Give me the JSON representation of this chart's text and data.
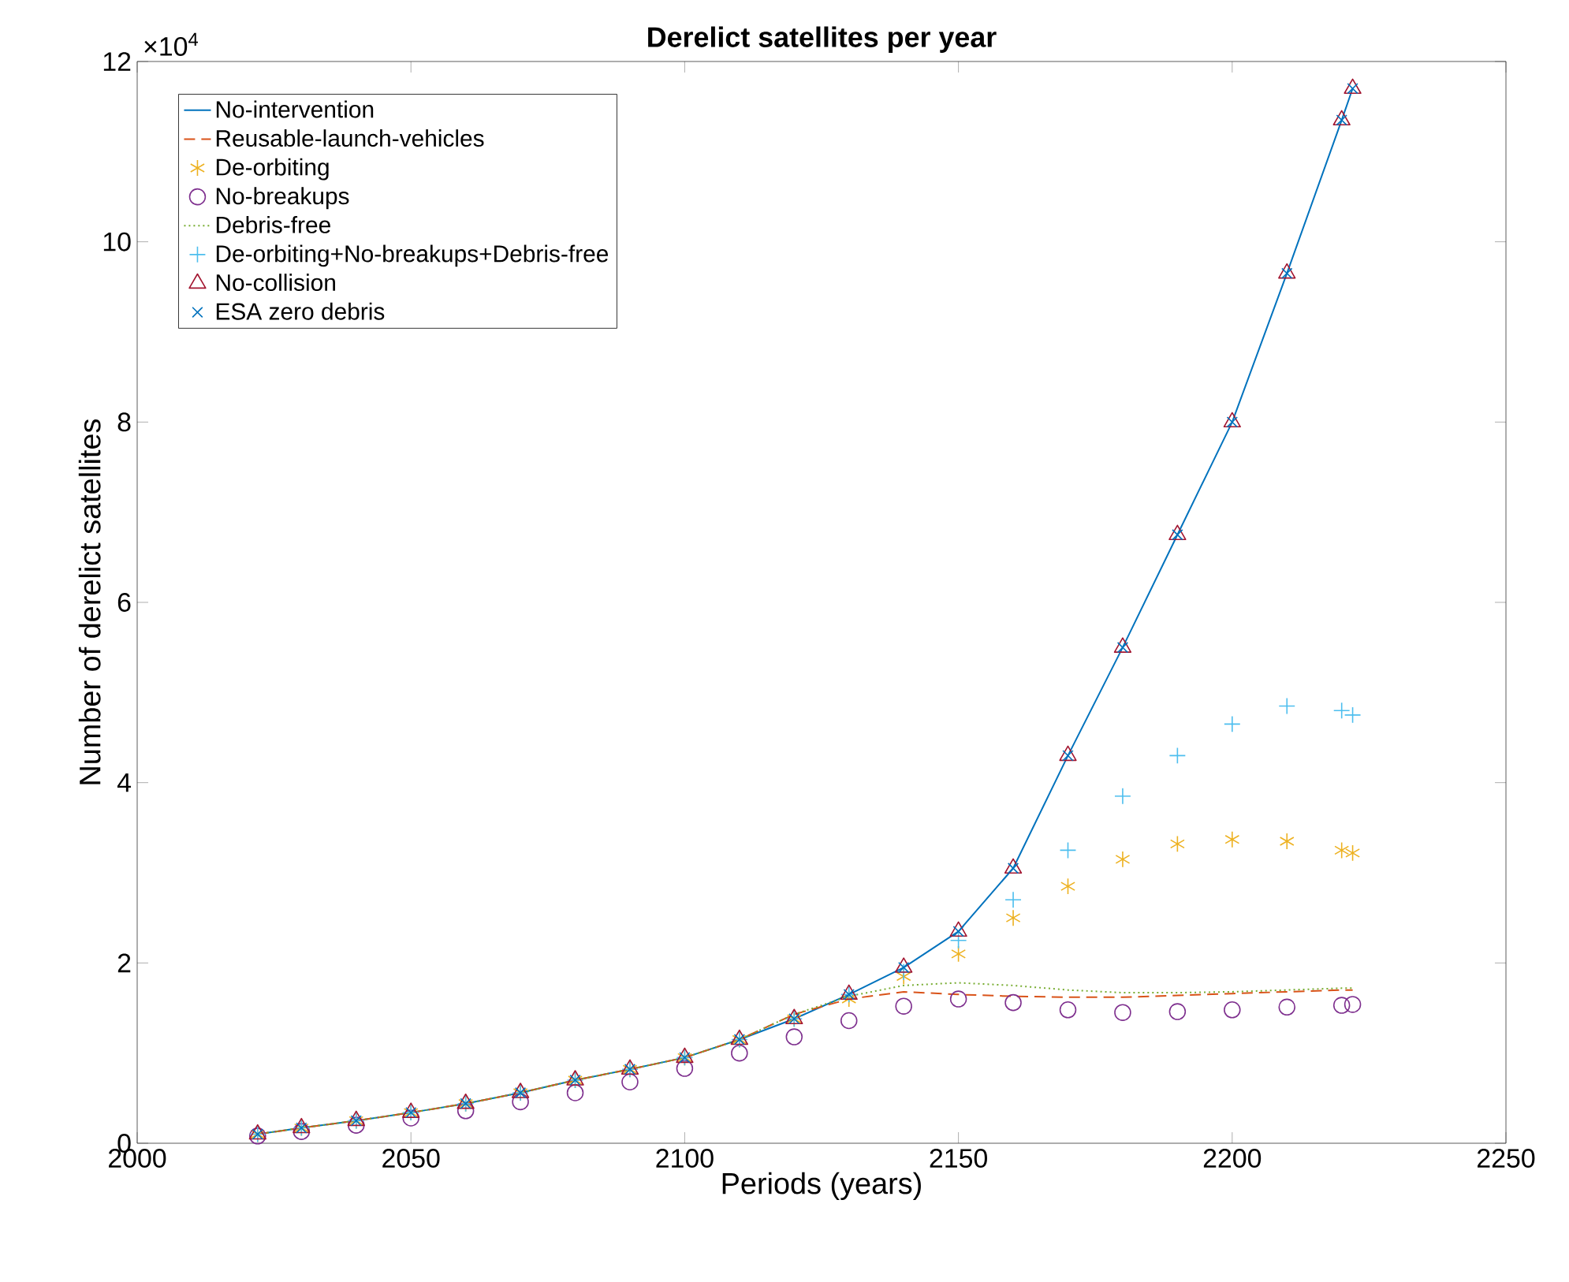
{
  "chart_data": {
    "type": "line",
    "title": "Derelict satellites per year",
    "xlabel": "Periods (years)",
    "ylabel": "Number of derelict satellites",
    "x": [
      2022,
      2030,
      2040,
      2050,
      2060,
      2070,
      2080,
      2090,
      2100,
      2110,
      2120,
      2130,
      2140,
      2150,
      2160,
      2170,
      2180,
      2190,
      2200,
      2210,
      2220,
      2222
    ],
    "xlim": [
      2000,
      2250
    ],
    "xticks": [
      2000,
      2050,
      2100,
      2150,
      2200,
      2250
    ],
    "ylim": [
      0,
      12
    ],
    "yticks": [
      0,
      2,
      4,
      6,
      8,
      10,
      12
    ],
    "annotations": [
      "×10$^{4}$"
    ],
    "legend": "top left",
    "grid": false,
    "series": [
      {
        "name": "No-intervention",
        "color": "#0072bd",
        "line_style": "solid",
        "values": [
          0.1,
          0.17,
          0.25,
          0.34,
          0.44,
          0.56,
          0.7,
          0.82,
          0.95,
          1.15,
          1.38,
          1.65,
          1.95,
          2.35,
          3.05,
          4.3,
          5.5,
          6.75,
          8.0,
          9.65,
          11.35,
          11.7
        ]
      },
      {
        "name": "Reusable-launch-vehicles",
        "color": "#d95319",
        "line_style": "dashed",
        "values": [
          0.1,
          0.17,
          0.25,
          0.34,
          0.44,
          0.56,
          0.7,
          0.82,
          0.95,
          1.15,
          1.43,
          1.6,
          1.68,
          1.65,
          1.63,
          1.62,
          1.62,
          1.64,
          1.66,
          1.68,
          1.7,
          1.7
        ]
      },
      {
        "name": "De-orbiting",
        "color": "#edb120",
        "type": "scatter",
        "values": [
          0.1,
          0.17,
          0.25,
          0.34,
          0.44,
          0.56,
          0.7,
          0.82,
          0.95,
          1.15,
          1.38,
          1.6,
          1.85,
          2.1,
          2.5,
          2.85,
          3.15,
          3.32,
          3.37,
          3.35,
          3.25,
          3.22
        ]
      },
      {
        "name": "No-breakups",
        "color": "#7e2f8e",
        "type": "scatter",
        "marker": "circle",
        "values": [
          0.08,
          0.13,
          0.2,
          0.28,
          0.36,
          0.46,
          0.56,
          0.68,
          0.83,
          1.0,
          1.18,
          1.36,
          1.52,
          1.6,
          1.56,
          1.48,
          1.45,
          1.46,
          1.48,
          1.51,
          1.53,
          1.54
        ]
      },
      {
        "name": "Debris-free",
        "color": "#77ac30",
        "line_style": "dotted",
        "values": [
          0.1,
          0.17,
          0.25,
          0.34,
          0.44,
          0.56,
          0.7,
          0.82,
          0.95,
          1.15,
          1.43,
          1.63,
          1.75,
          1.78,
          1.75,
          1.7,
          1.67,
          1.67,
          1.68,
          1.7,
          1.72,
          1.72
        ]
      },
      {
        "name": "De-orbiting+No-breakups+Debris-free",
        "color": "#4dbeee",
        "type": "scatter",
        "marker": "plus",
        "values": [
          0.1,
          0.17,
          0.25,
          0.34,
          0.44,
          0.56,
          0.7,
          0.82,
          0.95,
          1.15,
          1.38,
          1.65,
          1.9,
          2.25,
          2.7,
          3.25,
          3.85,
          4.3,
          4.65,
          4.85,
          4.8,
          4.75
        ]
      },
      {
        "name": "No-collision",
        "color": "#a2142f",
        "type": "scatter",
        "marker": "triangle",
        "values": [
          0.1,
          0.17,
          0.25,
          0.34,
          0.44,
          0.56,
          0.7,
          0.82,
          0.95,
          1.15,
          1.38,
          1.65,
          1.95,
          2.35,
          3.05,
          4.3,
          5.5,
          6.75,
          8.0,
          9.65,
          11.35,
          11.7
        ]
      },
      {
        "name": "ESA zero debris",
        "color": "#0072bd",
        "type": "scatter",
        "marker": "cross",
        "values": [
          0.1,
          0.17,
          0.25,
          0.34,
          0.44,
          0.56,
          0.7,
          0.82,
          0.95,
          1.15,
          1.38,
          1.65,
          1.95,
          2.35,
          3.05,
          4.3,
          5.5,
          6.75,
          8.0,
          9.65,
          11.35,
          11.7
        ]
      }
    ]
  }
}
